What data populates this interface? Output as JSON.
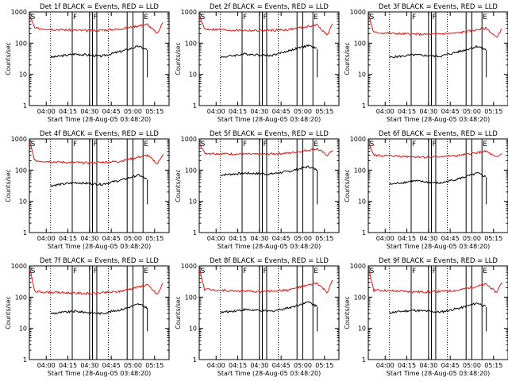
{
  "xlabel": "Start Time (28-Aug-05 03:48:20)",
  "ylabel": "Counts/sec",
  "x_ticks": [
    "04:00",
    "04:15",
    "04:30",
    "04:45",
    "05:00",
    "05:15"
  ],
  "y_ticks": [
    "1",
    "10",
    "100",
    "1000"
  ],
  "colors": {
    "events": "#000000",
    "lld": "#e01818",
    "axes": "#000000"
  },
  "chart_data": [
    {
      "type": "line",
      "title": "Det 1f BLACK = Events, RED = LLD",
      "xlabel": "Start Time (28-Aug-05 03:48:20)",
      "ylabel": "Counts/sec",
      "y_scale": "log",
      "ylim": [
        1,
        1000
      ],
      "xlim": [
        "03:48:20",
        "05:25:00"
      ],
      "markers": [
        "S",
        "F",
        "F",
        "E"
      ],
      "series": [
        {
          "name": "Events",
          "values_x": [
            "04:03",
            "04:20",
            "04:38",
            "04:52",
            "05:04",
            "05:10"
          ],
          "values": [
            35,
            45,
            38,
            55,
            80,
            60
          ]
        },
        {
          "name": "LLD",
          "values_x": [
            "03:49",
            "03:52",
            "04:10",
            "04:30",
            "04:50",
            "05:10",
            "05:17",
            "05:21"
          ],
          "values": [
            700,
            300,
            270,
            250,
            280,
            400,
            200,
            500
          ]
        }
      ]
    },
    {
      "type": "line",
      "title": "Det 2f BLACK = Events, RED = LLD",
      "xlabel": "Start Time (28-Aug-05 03:48:20)",
      "ylabel": "Counts/sec",
      "y_scale": "log",
      "ylim": [
        1,
        1000
      ],
      "xlim": [
        "03:48:20",
        "05:25:00"
      ],
      "markers": [
        "S",
        "F",
        "F",
        "E"
      ],
      "series": [
        {
          "name": "Events",
          "values_x": [
            "04:03",
            "04:20",
            "04:38",
            "04:52",
            "05:04",
            "05:10"
          ],
          "values": [
            35,
            45,
            40,
            60,
            85,
            65
          ]
        },
        {
          "name": "LLD",
          "values_x": [
            "03:49",
            "03:52",
            "04:10",
            "04:30",
            "04:50",
            "05:10",
            "05:17",
            "05:21"
          ],
          "values": [
            700,
            280,
            260,
            250,
            270,
            380,
            180,
            450
          ]
        }
      ]
    },
    {
      "type": "line",
      "title": "Det 3f BLACK = Events, RED = LLD",
      "xlabel": "Start Time (28-Aug-05 03:48:20)",
      "ylabel": "Counts/sec",
      "y_scale": "log",
      "ylim": [
        1,
        1000
      ],
      "xlim": [
        "03:48:20",
        "05:25:00"
      ],
      "markers": [
        "S",
        "F",
        "F",
        "E"
      ],
      "series": [
        {
          "name": "Events",
          "values_x": [
            "04:03",
            "04:20",
            "04:38",
            "04:52",
            "05:04",
            "05:10"
          ],
          "values": [
            35,
            42,
            38,
            55,
            80,
            60
          ]
        },
        {
          "name": "LLD",
          "values_x": [
            "03:49",
            "03:52",
            "04:10",
            "04:30",
            "04:50",
            "05:10",
            "05:17",
            "05:21"
          ],
          "values": [
            700,
            220,
            200,
            190,
            210,
            300,
            150,
            300
          ]
        }
      ]
    },
    {
      "type": "line",
      "title": "Det 4f BLACK = Events, RED = LLD",
      "xlabel": "Start Time (28-Aug-05 03:48:20)",
      "ylabel": "Counts/sec",
      "y_scale": "log",
      "ylim": [
        1,
        1000
      ],
      "xlim": [
        "03:48:20",
        "05:25:00"
      ],
      "markers": [
        "S",
        "F",
        "F",
        "E"
      ],
      "series": [
        {
          "name": "Events",
          "values_x": [
            "04:03",
            "04:20",
            "04:38",
            "04:52",
            "05:04",
            "05:10"
          ],
          "values": [
            32,
            40,
            35,
            48,
            70,
            50
          ]
        },
        {
          "name": "LLD",
          "values_x": [
            "03:49",
            "03:52",
            "04:10",
            "04:30",
            "04:50",
            "05:10",
            "05:17",
            "05:21"
          ],
          "values": [
            700,
            200,
            180,
            170,
            190,
            300,
            160,
            350
          ]
        }
      ]
    },
    {
      "type": "line",
      "title": "Det 5f BLACK = Events, RED = LLD",
      "xlabel": "Start Time (28-Aug-05 03:48:20)",
      "ylabel": "Counts/sec",
      "y_scale": "log",
      "ylim": [
        1,
        1000
      ],
      "xlim": [
        "03:48:20",
        "05:25:00"
      ],
      "markers": [
        "S",
        "F",
        "F",
        "E"
      ],
      "series": [
        {
          "name": "Events",
          "values_x": [
            "04:03",
            "04:20",
            "04:38",
            "04:52",
            "05:04",
            "05:10"
          ],
          "values": [
            70,
            80,
            75,
            95,
            130,
            100
          ]
        },
        {
          "name": "LLD",
          "values_x": [
            "03:49",
            "03:52",
            "04:10",
            "04:30",
            "04:50",
            "05:10",
            "05:17",
            "05:21"
          ],
          "values": [
            700,
            350,
            330,
            320,
            350,
            480,
            300,
            450
          ]
        }
      ]
    },
    {
      "type": "line",
      "title": "Det 6f BLACK = Events, RED = LLD",
      "xlabel": "Start Time (28-Aug-05 03:48:20)",
      "ylabel": "Counts/sec",
      "y_scale": "log",
      "ylim": [
        1,
        1000
      ],
      "xlim": [
        "03:48:20",
        "05:25:00"
      ],
      "markers": [
        "S",
        "F",
        "F",
        "E"
      ],
      "series": [
        {
          "name": "Events",
          "values_x": [
            "04:03",
            "04:20",
            "04:38",
            "04:52",
            "05:04",
            "05:10"
          ],
          "values": [
            35,
            45,
            38,
            55,
            80,
            60
          ]
        },
        {
          "name": "LLD",
          "values_x": [
            "03:49",
            "03:52",
            "04:10",
            "04:30",
            "04:50",
            "05:10",
            "05:17",
            "05:21"
          ],
          "values": [
            700,
            300,
            280,
            260,
            290,
            400,
            250,
            350
          ]
        }
      ]
    },
    {
      "type": "line",
      "title": "Det 7f BLACK = Events, RED = LLD",
      "xlabel": "Start Time (28-Aug-05 03:48:20)",
      "ylabel": "Counts/sec",
      "y_scale": "log",
      "ylim": [
        1,
        1000
      ],
      "xlim": [
        "03:48:20",
        "05:25:00"
      ],
      "markers": [
        "S",
        "F",
        "F",
        "E"
      ],
      "series": [
        {
          "name": "Events",
          "values_x": [
            "04:03",
            "04:20",
            "04:38",
            "04:52",
            "05:04",
            "05:10"
          ],
          "values": [
            30,
            35,
            30,
            40,
            60,
            45
          ]
        },
        {
          "name": "LLD",
          "values_x": [
            "03:49",
            "03:52",
            "04:10",
            "04:30",
            "04:50",
            "05:10",
            "05:17",
            "05:21"
          ],
          "values": [
            700,
            150,
            140,
            130,
            150,
            250,
            120,
            300
          ]
        }
      ]
    },
    {
      "type": "line",
      "title": "Det 8f BLACK = Events, RED = LLD",
      "xlabel": "Start Time (28-Aug-05 03:48:20)",
      "ylabel": "Counts/sec",
      "y_scale": "log",
      "ylim": [
        1,
        1000
      ],
      "xlim": [
        "03:48:20",
        "05:25:00"
      ],
      "markers": [
        "S",
        "F",
        "F",
        "E"
      ],
      "series": [
        {
          "name": "Events",
          "values_x": [
            "04:03",
            "04:20",
            "04:38",
            "04:52",
            "05:04",
            "05:10"
          ],
          "values": [
            32,
            40,
            35,
            48,
            70,
            50
          ]
        },
        {
          "name": "LLD",
          "values_x": [
            "03:49",
            "03:52",
            "04:10",
            "04:30",
            "04:50",
            "05:10",
            "05:17",
            "05:21"
          ],
          "values": [
            700,
            180,
            160,
            150,
            170,
            280,
            140,
            380
          ]
        }
      ]
    },
    {
      "type": "line",
      "title": "Det 9f BLACK = Events, RED = LLD",
      "xlabel": "Start Time (28-Aug-05 03:48:20)",
      "ylabel": "Counts/sec",
      "y_scale": "log",
      "ylim": [
        1,
        1000
      ],
      "xlim": [
        "03:48:20",
        "05:25:00"
      ],
      "markers": [
        "S",
        "F",
        "F",
        "E"
      ],
      "series": [
        {
          "name": "Events",
          "values_x": [
            "04:03",
            "04:20",
            "04:38",
            "04:52",
            "05:04",
            "05:10"
          ],
          "values": [
            32,
            38,
            33,
            45,
            65,
            48
          ]
        },
        {
          "name": "LLD",
          "values_x": [
            "03:49",
            "03:52",
            "04:10",
            "04:30",
            "04:50",
            "05:10",
            "05:17",
            "05:21"
          ],
          "values": [
            700,
            170,
            155,
            145,
            165,
            260,
            140,
            320
          ]
        }
      ]
    }
  ]
}
